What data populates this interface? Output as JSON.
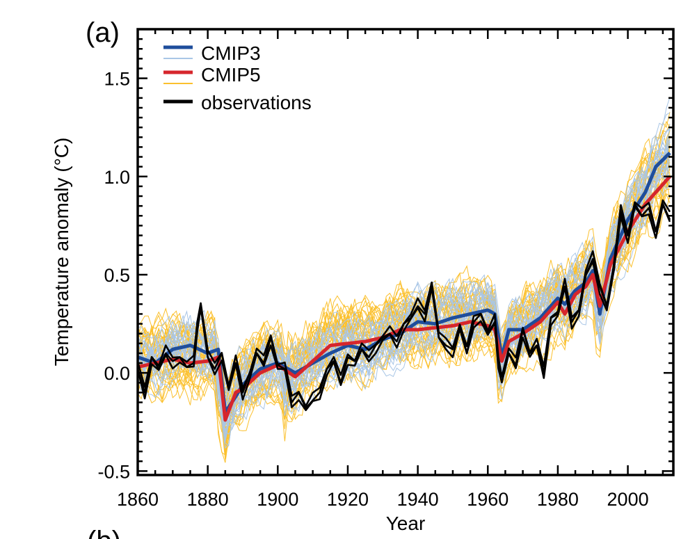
{
  "panel_label": "(a)",
  "next_panel_label": "(b)",
  "chart_data": {
    "type": "line",
    "title": "",
    "xlabel": "Year",
    "ylabel": "Temperature anomaly (°C)",
    "xlim": [
      1860,
      2013
    ],
    "ylim": [
      -0.52,
      1.75
    ],
    "x_ticks": [
      1860,
      1880,
      1900,
      1920,
      1940,
      1960,
      1980,
      2000
    ],
    "x_tick_labels": [
      "1860",
      "1880",
      "1900",
      "1920",
      "1940",
      "1960",
      "1980",
      "2000"
    ],
    "y_ticks": [
      -0.5,
      0.0,
      0.5,
      1.0,
      1.5
    ],
    "y_tick_labels": [
      "-0.5",
      "0.0",
      "0.5",
      "1.0",
      "1.5"
    ],
    "legend_position": "top-left",
    "legend": [
      {
        "label": "CMIP3",
        "color": "#1f4e9c",
        "ensemble_color": "#a9c6e6"
      },
      {
        "label": "CMIP5",
        "color": "#d6262c",
        "ensemble_color": "#fbc02d"
      },
      {
        "label": "observations",
        "color": "#000000"
      }
    ],
    "colors": {
      "cmip3_mean": "#1f4e9c",
      "cmip3_members": "#a9c6e6",
      "cmip5_mean": "#d6262c",
      "cmip5_members": "#fbc02d",
      "observations": "#000000"
    },
    "series": [
      {
        "name": "CMIP3 multi-model mean",
        "x": [
          1860,
          1865,
          1870,
          1875,
          1880,
          1883,
          1885,
          1888,
          1890,
          1895,
          1900,
          1905,
          1910,
          1915,
          1920,
          1925,
          1930,
          1935,
          1940,
          1945,
          1950,
          1955,
          1960,
          1962,
          1964,
          1966,
          1970,
          1975,
          1980,
          1982,
          1985,
          1988,
          1990,
          1992,
          1995,
          2000,
          2005,
          2008,
          2012
        ],
        "values": [
          0.08,
          0.05,
          0.12,
          0.14,
          0.1,
          0.12,
          -0.2,
          -0.12,
          -0.06,
          0.02,
          0.05,
          0.0,
          0.05,
          0.1,
          0.14,
          0.12,
          0.17,
          0.2,
          0.26,
          0.25,
          0.28,
          0.3,
          0.32,
          0.3,
          0.08,
          0.22,
          0.22,
          0.28,
          0.38,
          0.35,
          0.42,
          0.46,
          0.52,
          0.3,
          0.58,
          0.78,
          0.92,
          1.05,
          1.12
        ]
      },
      {
        "name": "CMIP5 multi-model mean",
        "x": [
          1860,
          1865,
          1870,
          1875,
          1880,
          1883,
          1885,
          1888,
          1890,
          1895,
          1900,
          1905,
          1910,
          1915,
          1920,
          1925,
          1930,
          1935,
          1940,
          1945,
          1950,
          1955,
          1960,
          1962,
          1964,
          1966,
          1970,
          1975,
          1980,
          1982,
          1985,
          1988,
          1990,
          1992,
          1995,
          2000,
          2005,
          2008,
          2012
        ],
        "values": [
          0.03,
          0.05,
          0.07,
          0.05,
          0.06,
          0.08,
          -0.24,
          -0.1,
          -0.08,
          0.0,
          0.04,
          -0.02,
          0.06,
          0.14,
          0.15,
          0.16,
          0.18,
          0.22,
          0.22,
          0.23,
          0.24,
          0.26,
          0.24,
          0.22,
          0.06,
          0.16,
          0.2,
          0.26,
          0.36,
          0.3,
          0.4,
          0.44,
          0.5,
          0.34,
          0.55,
          0.72,
          0.86,
          0.92,
          1.0
        ]
      },
      {
        "name": "observations",
        "x": [
          1860,
          1862,
          1864,
          1866,
          1868,
          1870,
          1872,
          1874,
          1876,
          1877,
          1878,
          1880,
          1882,
          1884,
          1886,
          1888,
          1890,
          1892,
          1894,
          1896,
          1898,
          1900,
          1902,
          1904,
          1906,
          1908,
          1910,
          1912,
          1914,
          1916,
          1918,
          1920,
          1922,
          1924,
          1926,
          1928,
          1930,
          1932,
          1934,
          1936,
          1938,
          1940,
          1942,
          1944,
          1946,
          1948,
          1950,
          1952,
          1954,
          1956,
          1958,
          1960,
          1962,
          1963,
          1964,
          1966,
          1968,
          1970,
          1972,
          1974,
          1976,
          1978,
          1980,
          1982,
          1984,
          1986,
          1988,
          1990,
          1992,
          1994,
          1996,
          1998,
          2000,
          2002,
          2004,
          2006,
          2008,
          2010,
          2012
        ],
        "values": [
          0.02,
          -0.1,
          0.08,
          0.02,
          0.1,
          0.06,
          0.08,
          0.03,
          0.05,
          0.25,
          0.35,
          0.08,
          0.02,
          0.1,
          -0.08,
          0.05,
          -0.1,
          0.0,
          0.1,
          0.05,
          0.18,
          0.04,
          0.02,
          -0.15,
          -0.1,
          -0.18,
          -0.14,
          -0.1,
          0.02,
          0.06,
          -0.05,
          0.08,
          0.06,
          0.12,
          0.08,
          0.14,
          0.18,
          0.2,
          0.16,
          0.25,
          0.28,
          0.34,
          0.3,
          0.46,
          0.18,
          0.14,
          0.12,
          0.24,
          0.1,
          0.26,
          0.3,
          0.2,
          0.26,
          0.06,
          -0.02,
          0.1,
          0.04,
          0.22,
          0.1,
          0.14,
          0.0,
          0.28,
          0.3,
          0.44,
          0.26,
          0.32,
          0.5,
          0.58,
          0.44,
          0.34,
          0.52,
          0.82,
          0.7,
          0.86,
          0.8,
          0.84,
          0.72,
          0.86,
          0.78
        ]
      }
    ]
  }
}
